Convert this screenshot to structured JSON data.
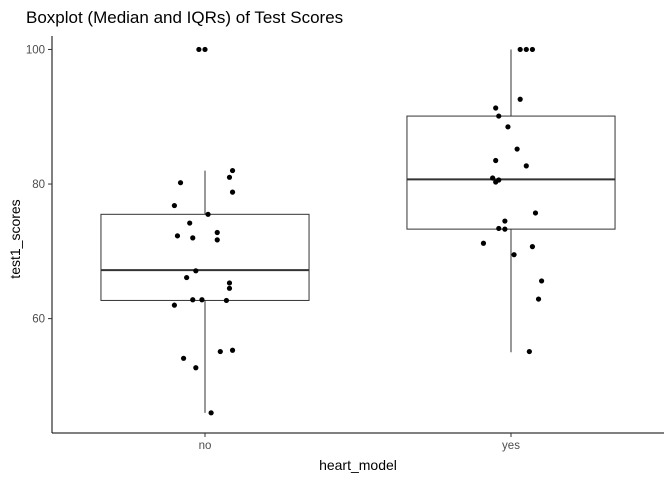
{
  "chart_data": {
    "type": "boxplot",
    "title": "Boxplot (Median and IQRs) of Test Scores",
    "xlabel": "heart_model",
    "ylabel": "test1_scores",
    "categories": [
      "no",
      "yes"
    ],
    "yticks": [
      60,
      80,
      100
    ],
    "ylim": [
      43,
      102
    ],
    "grid": false,
    "boxes": [
      {
        "category": "no",
        "whisker_low": 46,
        "q1": 62.7,
        "median": 67.2,
        "q3": 75.5,
        "whisker_high": 82
      },
      {
        "category": "yes",
        "whisker_low": 55,
        "q1": 73.3,
        "median": 80.7,
        "q3": 90.1,
        "whisker_high": 100
      }
    ],
    "points": [
      {
        "category": "no",
        "jitter": -0.02,
        "y": 100
      },
      {
        "category": "no",
        "jitter": 0.0,
        "y": 100
      },
      {
        "category": "no",
        "jitter": 0.09,
        "y": 82
      },
      {
        "category": "no",
        "jitter": 0.08,
        "y": 81
      },
      {
        "category": "no",
        "jitter": -0.08,
        "y": 80.2
      },
      {
        "category": "no",
        "jitter": 0.09,
        "y": 78.8
      },
      {
        "category": "no",
        "jitter": -0.1,
        "y": 76.8
      },
      {
        "category": "no",
        "jitter": 0.01,
        "y": 75.5
      },
      {
        "category": "no",
        "jitter": -0.05,
        "y": 74.2
      },
      {
        "category": "no",
        "jitter": 0.04,
        "y": 72.8
      },
      {
        "category": "no",
        "jitter": -0.09,
        "y": 72.3
      },
      {
        "category": "no",
        "jitter": -0.04,
        "y": 72
      },
      {
        "category": "no",
        "jitter": 0.04,
        "y": 71.7
      },
      {
        "category": "no",
        "jitter": -0.03,
        "y": 67.1
      },
      {
        "category": "no",
        "jitter": -0.06,
        "y": 66.1
      },
      {
        "category": "no",
        "jitter": 0.08,
        "y": 65.3
      },
      {
        "category": "no",
        "jitter": 0.08,
        "y": 64.5
      },
      {
        "category": "no",
        "jitter": -0.04,
        "y": 62.8
      },
      {
        "category": "no",
        "jitter": -0.01,
        "y": 62.8
      },
      {
        "category": "no",
        "jitter": 0.07,
        "y": 62.7
      },
      {
        "category": "no",
        "jitter": -0.1,
        "y": 62
      },
      {
        "category": "no",
        "jitter": 0.09,
        "y": 55.3
      },
      {
        "category": "no",
        "jitter": 0.05,
        "y": 55.1
      },
      {
        "category": "no",
        "jitter": -0.07,
        "y": 54.1
      },
      {
        "category": "no",
        "jitter": -0.03,
        "y": 52.7
      },
      {
        "category": "no",
        "jitter": 0.02,
        "y": 46
      },
      {
        "category": "yes",
        "jitter": 0.03,
        "y": 100
      },
      {
        "category": "yes",
        "jitter": 0.05,
        "y": 100
      },
      {
        "category": "yes",
        "jitter": 0.07,
        "y": 100
      },
      {
        "category": "yes",
        "jitter": 0.03,
        "y": 92.6
      },
      {
        "category": "yes",
        "jitter": -0.05,
        "y": 91.3
      },
      {
        "category": "yes",
        "jitter": -0.04,
        "y": 90.1
      },
      {
        "category": "yes",
        "jitter": -0.01,
        "y": 88.5
      },
      {
        "category": "yes",
        "jitter": 0.02,
        "y": 85.2
      },
      {
        "category": "yes",
        "jitter": -0.05,
        "y": 83.5
      },
      {
        "category": "yes",
        "jitter": 0.05,
        "y": 82.7
      },
      {
        "category": "yes",
        "jitter": -0.06,
        "y": 80.9
      },
      {
        "category": "yes",
        "jitter": -0.04,
        "y": 80.6
      },
      {
        "category": "yes",
        "jitter": -0.05,
        "y": 80.3
      },
      {
        "category": "yes",
        "jitter": 0.08,
        "y": 75.7
      },
      {
        "category": "yes",
        "jitter": -0.02,
        "y": 74.5
      },
      {
        "category": "yes",
        "jitter": -0.04,
        "y": 73.4
      },
      {
        "category": "yes",
        "jitter": -0.02,
        "y": 73.3
      },
      {
        "category": "yes",
        "jitter": -0.09,
        "y": 71.2
      },
      {
        "category": "yes",
        "jitter": 0.07,
        "y": 70.7
      },
      {
        "category": "yes",
        "jitter": 0.01,
        "y": 69.5
      },
      {
        "category": "yes",
        "jitter": 0.1,
        "y": 65.6
      },
      {
        "category": "yes",
        "jitter": 0.09,
        "y": 62.9
      },
      {
        "category": "yes",
        "jitter": 0.06,
        "y": 55.1
      }
    ],
    "colors": {
      "box_stroke": "#333333",
      "point": "#000000",
      "axis": "#000000",
      "tick_label": "#4d4d4d"
    }
  }
}
